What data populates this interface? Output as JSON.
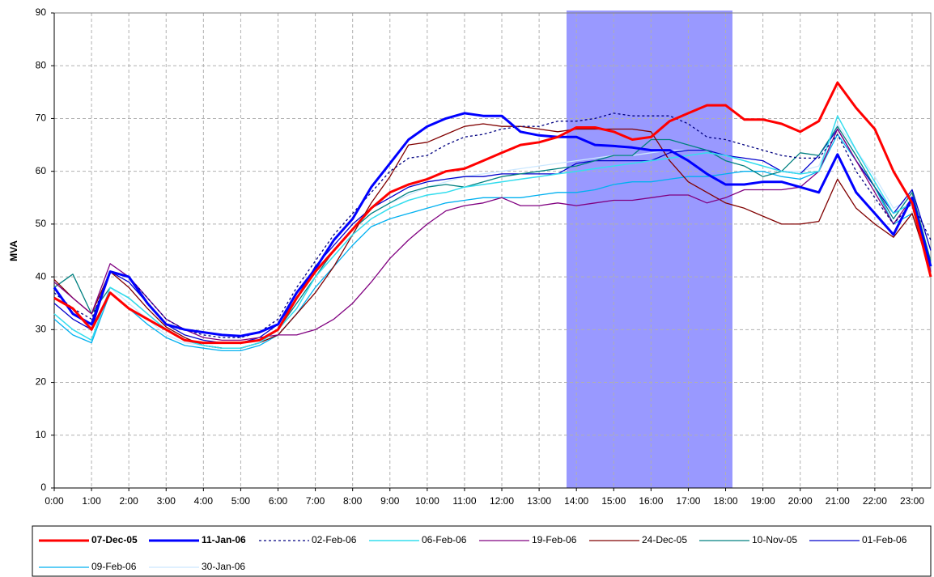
{
  "chart_data": {
    "type": "line",
    "y_label": "MVA",
    "categories": [
      "0:00",
      null,
      "1:00",
      null,
      "2:00",
      null,
      "3:00",
      null,
      "4:00",
      null,
      "5:00",
      null,
      "6:00",
      null,
      "7:00",
      null,
      "8:00",
      null,
      "9:00",
      null,
      "10:00",
      null,
      "11:00",
      null,
      "12:00",
      null,
      "13:00",
      null,
      "14:00",
      null,
      "15:00",
      null,
      "16:00",
      null,
      "17:00",
      null,
      "18:00",
      null,
      "19:00",
      null,
      "20:00",
      null,
      "21:00",
      null,
      "22:00",
      null,
      "23:00",
      null
    ],
    "ylim": [
      0,
      90
    ],
    "yticks": [
      0,
      10,
      20,
      30,
      40,
      50,
      60,
      70,
      80,
      90
    ],
    "grid": true,
    "series": [
      {
        "name": "07-Dec-05",
        "color": "#ff0000",
        "line_width": 3,
        "values": [
          36,
          34,
          30,
          37,
          34,
          32,
          30,
          28,
          27.5,
          27.5,
          27.5,
          28,
          30,
          36,
          41,
          45,
          49,
          53,
          56,
          57.5,
          58.5,
          60,
          60.5,
          62,
          63.5,
          65,
          65.5,
          66.5,
          68.3,
          68.3,
          67.5,
          66,
          66.5,
          69.5,
          71,
          72.5,
          72.5,
          69.8,
          69.8,
          69,
          67.5,
          69.5,
          76.8,
          72,
          68,
          60,
          54,
          40
        ]
      },
      {
        "name": "11-Jan-06",
        "color": "#0000ff",
        "line_width": 3,
        "values": [
          38,
          33,
          31,
          41,
          40,
          35,
          31,
          30,
          29.5,
          29,
          28.8,
          29.5,
          31,
          37,
          41.5,
          47,
          51,
          57,
          61.5,
          66,
          68.5,
          70,
          71,
          70.5,
          70.5,
          67.5,
          66.8,
          66.5,
          66.5,
          65,
          64.8,
          64.5,
          64,
          64,
          62,
          59.5,
          57.5,
          57.5,
          58,
          58,
          57,
          56,
          63.2,
          56,
          52,
          48,
          55,
          42
        ]
      },
      {
        "name": "02-Feb-06",
        "color": "#000080",
        "line_width": 1.3,
        "dashed": true,
        "values": [
          37,
          34,
          32,
          41,
          40,
          36,
          32,
          30,
          29,
          28.5,
          28.5,
          29.5,
          32,
          38,
          43,
          48,
          52,
          56,
          60,
          62.5,
          63,
          65,
          66.5,
          67,
          68,
          68.5,
          68.5,
          69.5,
          69.5,
          70,
          71,
          70.5,
          70.5,
          70.5,
          69,
          66.5,
          66,
          65,
          64,
          63,
          62.5,
          62.5,
          67,
          60,
          55,
          50,
          54,
          47
        ]
      },
      {
        "name": "06-Feb-06",
        "color": "#33ddee",
        "line_width": 1.5,
        "values": [
          33,
          30,
          28,
          38,
          36,
          33,
          30,
          28,
          27,
          26.5,
          26.5,
          27.5,
          30,
          34,
          40,
          44,
          48,
          51,
          53,
          54.5,
          55.5,
          56,
          57,
          57.5,
          58,
          58.5,
          59,
          59.5,
          60,
          60.5,
          61,
          61.5,
          62,
          62.5,
          63,
          63.5,
          63,
          62,
          61,
          60,
          59.5,
          60,
          70.5,
          64,
          58,
          52,
          54,
          42
        ]
      },
      {
        "name": "19-Feb-06",
        "color": "#800080",
        "line_width": 1.3,
        "values": [
          39,
          36,
          33,
          42.5,
          40,
          36,
          32,
          30,
          28.5,
          28,
          28,
          28.5,
          29,
          29,
          30,
          32,
          35,
          39,
          43.5,
          47,
          50,
          52.5,
          53.5,
          54,
          55,
          53.5,
          53.5,
          54,
          53.5,
          54,
          54.5,
          54.5,
          55,
          55.5,
          55.5,
          54,
          55,
          56.5,
          56.5,
          56.5,
          57,
          60,
          68,
          62,
          56,
          50,
          55,
          41
        ]
      },
      {
        "name": "24-Dec-05",
        "color": "#800000",
        "line_width": 1.3,
        "values": [
          39.5,
          36,
          33,
          41,
          38,
          34,
          30.5,
          28.5,
          27,
          26.5,
          26.5,
          27.5,
          29,
          33,
          37,
          42,
          48,
          54,
          59,
          65,
          65.5,
          67,
          68.5,
          69,
          68.5,
          68.5,
          68,
          67.5,
          68,
          68,
          68,
          68,
          67.5,
          62,
          58,
          56,
          54,
          53,
          51.5,
          50,
          50,
          50.5,
          58.5,
          53,
          50,
          47.5,
          52,
          41
        ]
      },
      {
        "name": "10-Nov-05",
        "color": "#008080",
        "line_width": 1.3,
        "values": [
          38,
          40.5,
          33,
          38,
          36,
          33,
          30,
          28,
          27,
          26.5,
          26.5,
          27.5,
          30,
          35,
          40,
          45,
          49,
          52,
          54,
          56,
          57,
          57.5,
          57,
          58,
          59,
          59.5,
          60,
          60.5,
          61,
          62,
          63,
          63,
          66,
          66,
          65,
          64,
          62,
          61,
          59,
          60,
          63.5,
          63,
          68.5,
          63,
          57,
          51,
          56,
          43
        ]
      },
      {
        "name": "01-Feb-06",
        "color": "#0000cc",
        "line_width": 1.3,
        "values": [
          35,
          32,
          30,
          41,
          39,
          35,
          31,
          29,
          28,
          27.5,
          27.5,
          28.5,
          31,
          36,
          42,
          46,
          50,
          53,
          55,
          57,
          58,
          58.5,
          59,
          59,
          59.5,
          59.5,
          59.5,
          59.5,
          61.5,
          62,
          62,
          62,
          62,
          63.5,
          64,
          64,
          63,
          62.5,
          62,
          60,
          59.5,
          63,
          68,
          62,
          57,
          52,
          56.5,
          45
        ]
      },
      {
        "name": "09-Feb-06",
        "color": "#00b0f0",
        "line_width": 1.3,
        "values": [
          32,
          29,
          27.5,
          37,
          34,
          31,
          28.5,
          27,
          26.5,
          26,
          26,
          27,
          29,
          33,
          38,
          42,
          46,
          49.5,
          51,
          52,
          53,
          54,
          54.5,
          55,
          55,
          55,
          55.5,
          56,
          56,
          56.5,
          57.5,
          58,
          58,
          58.5,
          59,
          59,
          59.5,
          60,
          60,
          59,
          58.5,
          60,
          67,
          62,
          57,
          50,
          52,
          41
        ]
      },
      {
        "name": "30-Jan-06",
        "color": "#cce8ff",
        "line_width": 1.3,
        "values": [
          33,
          30,
          28,
          38,
          35,
          32,
          29,
          27.5,
          27,
          26.5,
          26.5,
          27.5,
          30,
          34,
          40,
          45,
          49,
          52,
          54,
          55.5,
          57,
          58,
          59,
          59.5,
          60,
          60.5,
          61,
          61.5,
          62,
          62.5,
          63,
          63,
          63.5,
          64,
          64,
          64,
          63,
          62,
          61,
          60,
          60,
          61,
          69,
          64,
          59,
          53,
          55,
          43
        ]
      }
    ]
  }
}
